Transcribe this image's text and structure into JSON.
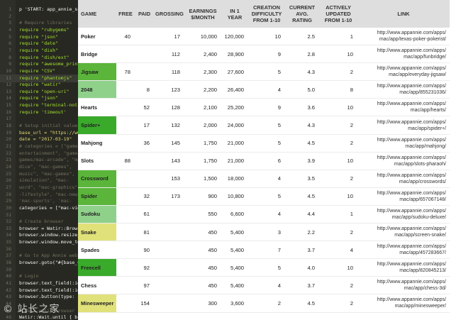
{
  "editor": {
    "watermark": "© 站长之家",
    "lines": [
      {
        "n": "1",
        "t": "p 'START: app_annie_scrape'",
        "c": "c-plain"
      },
      {
        "n": "2",
        "t": "",
        "c": "c-plain"
      },
      {
        "n": "3",
        "t": "# Require libraries",
        "c": "c-comment"
      },
      {
        "n": "4",
        "t": "require \"rubygems\"",
        "c": "c-green"
      },
      {
        "n": "5",
        "t": "require \"json\"",
        "c": "c-green"
      },
      {
        "n": "6",
        "t": "require \"date\"",
        "c": "c-green"
      },
      {
        "n": "7",
        "t": "require \"dish\"",
        "c": "c-green"
      },
      {
        "n": "8",
        "t": "require \"dish/ext\"",
        "c": "c-green"
      },
      {
        "n": "9",
        "t": "require \"awesome_print\"",
        "c": "c-green"
      },
      {
        "n": "10",
        "t": "require \"CSV\"",
        "c": "c-green"
      },
      {
        "n": "11",
        "t": "require \"phantomjs\"",
        "c": "c-green"
      },
      {
        "n": "12",
        "t": "require \"watir\"",
        "c": "c-green"
      },
      {
        "n": "13",
        "t": "require \"open-uri\"",
        "c": "c-green"
      },
      {
        "n": "14",
        "t": "require \"json\"",
        "c": "c-green"
      },
      {
        "n": "15",
        "t": "require \"terminal-notifier\"",
        "c": "c-green"
      },
      {
        "n": "16",
        "t": "require 'timeout'",
        "c": "c-green"
      },
      {
        "n": "17",
        "t": "",
        "c": "c-plain"
      },
      {
        "n": "18",
        "t": "# Setup initial values",
        "c": "c-comment"
      },
      {
        "n": "19",
        "t": "base_url = \"https://www.appannie.com\"",
        "c": "c-string"
      },
      {
        "n": "20",
        "t": "date = \"2017-03-19\"",
        "c": "c-string"
      },
      {
        "n": "21",
        "t": "# categories = [\"games\",",
        "c": "c-comment"
      },
      {
        "n": "22",
        "t": "  entertainment\", \"games\",",
        "c": "c-comment"
      },
      {
        "n": "23",
        "t": "  games/mac-arcade\", \"mac-",
        "c": "c-comment"
      },
      {
        "n": "24",
        "t": "  dice\", \"mac-games\",",
        "c": "c-comment"
      },
      {
        "n": "25",
        "t": "  music\", \"mac-games\",",
        "c": "c-comment"
      },
      {
        "n": "26",
        "t": "  simulation\", \"mac-",
        "c": "c-comment"
      },
      {
        "n": "27",
        "t": "  word\", \"mac-graphics\",",
        "c": "c-comment"
      },
      {
        "n": "28",
        "t": "  -lifestyle\", \"mac-news\",",
        "c": "c-comment"
      },
      {
        "n": "29",
        "t": "  'mac-sports', 'mac-",
        "c": "c-comment"
      },
      {
        "n": "30",
        "t": "categories = [\"mac-video\"]",
        "c": "c-plain"
      },
      {
        "n": "31",
        "t": "",
        "c": "c-plain"
      },
      {
        "n": "32",
        "t": "# Create browser",
        "c": "c-comment"
      },
      {
        "n": "33",
        "t": "browser = Watir::Browser.new",
        "c": "c-plain"
      },
      {
        "n": "34",
        "t": "browser.window.resize_to",
        "c": "c-plain"
      },
      {
        "n": "35",
        "t": "browser.window.move_to",
        "c": "c-plain"
      },
      {
        "n": "36",
        "t": "",
        "c": "c-plain"
      },
      {
        "n": "37",
        "t": "# Go to App Annie website",
        "c": "c-comment"
      },
      {
        "n": "38",
        "t": "browser.goto(\"#{base_url}\")",
        "c": "c-plain"
      },
      {
        "n": "39",
        "t": "",
        "c": "c-plain"
      },
      {
        "n": "40",
        "t": "# Login",
        "c": "c-comment"
      },
      {
        "n": "41",
        "t": "browser.text_field(:id",
        "c": "c-plain"
      },
      {
        "n": "42",
        "t": "browser.text_field(:id",
        "c": "c-plain"
      },
      {
        "n": "43",
        "t": "browser.button(type: 'submit')",
        "c": "c-plain"
      },
      {
        "n": "44",
        "t": "",
        "c": "c-plain"
      },
      {
        "n": "45",
        "t": "# Wait until browser loads",
        "c": "c-comment"
      },
      {
        "n": "46",
        "t": "Watir::Wait.until { brows",
        "c": "c-plain"
      }
    ]
  },
  "table": {
    "headers": [
      "GAME",
      "FREE",
      "PAID",
      "GROSSING",
      "EARNINGS $/MONTH",
      "IN 1 YEAR",
      "CREATION DIFFICULTY FROM 1-10",
      "CURRENT AVG. RATING",
      "ACTIVELY UPDATED FROM 1-10",
      "LINK"
    ],
    "rows": [
      {
        "game": "Poker",
        "free": "40",
        "paid": "",
        "grossing": "17",
        "earnings": "10,000",
        "year": "120,000",
        "difficulty": "10",
        "rating": "2.5",
        "updated": "1",
        "link1": "http://www.appannie.com/apps/",
        "link2": "mac/app/texas-poker-pokerist/",
        "color": "#ffffff"
      },
      {
        "game": "Bridge",
        "free": "",
        "paid": "",
        "grossing": "112",
        "earnings": "2,400",
        "year": "28,900",
        "difficulty": "9",
        "rating": "2.8",
        "updated": "10",
        "link1": "http://www.appannie.com/apps/",
        "link2": "mac/app/funbridge/",
        "color": "#ffffff"
      },
      {
        "game": "Jigsaw",
        "free": "78",
        "paid": "",
        "grossing": "118",
        "earnings": "2,300",
        "year": "27,600",
        "difficulty": "5",
        "rating": "4.3",
        "updated": "2",
        "link1": "http://www.appannie.com/apps/",
        "link2": "mac/app/everyday-jigsaw/",
        "color": "#5ab53a"
      },
      {
        "game": "2048",
        "free": "",
        "paid": "8",
        "grossing": "123",
        "earnings": "2,200",
        "year": "26,400",
        "difficulty": "4",
        "rating": "5.0",
        "updated": "8",
        "link1": "http://www.appannie.com/apps/",
        "link2": "mac/app/855231036/",
        "color": "#8fd18a"
      },
      {
        "game": "Hearts",
        "free": "",
        "paid": "52",
        "grossing": "128",
        "earnings": "2,100",
        "year": "25,200",
        "difficulty": "9",
        "rating": "3.6",
        "updated": "10",
        "link1": "http://www.appannie.com/apps/",
        "link2": "mac/app/hearts/",
        "color": "#ffffff"
      },
      {
        "game": "Spider+",
        "free": "",
        "paid": "17",
        "grossing": "132",
        "earnings": "2,000",
        "year": "24,000",
        "difficulty": "5",
        "rating": "4.3",
        "updated": "2",
        "link1": "http://www.appannie.com/apps/",
        "link2": "mac/app/spider+/",
        "color": "#3aaa2b"
      },
      {
        "game": "Mahjong",
        "free": "",
        "paid": "36",
        "grossing": "145",
        "earnings": "1,750",
        "year": "21,000",
        "difficulty": "5",
        "rating": "4.5",
        "updated": "2",
        "link1": "http://www.appannie.com/apps/",
        "link2": "mac/app/mahjong/",
        "color": "#ffffff"
      },
      {
        "game": "Slots",
        "free": "88",
        "paid": "",
        "grossing": "143",
        "earnings": "1,750",
        "year": "21,000",
        "difficulty": "6",
        "rating": "3.9",
        "updated": "10",
        "link1": "http://www.appannie.com/apps/",
        "link2": "mac/app/slots-pharaoh/",
        "color": "#ffffff"
      },
      {
        "game": "Crossword",
        "free": "",
        "paid": "",
        "grossing": "153",
        "earnings": "1,500",
        "year": "18,000",
        "difficulty": "4",
        "rating": "3.5",
        "updated": "2",
        "link1": "http://www.appannie.com/apps/",
        "link2": "mac/app/crosswords/",
        "color": "#5ab53a"
      },
      {
        "game": "Spider",
        "free": "",
        "paid": "32",
        "grossing": "173",
        "earnings": "900",
        "year": "10,800",
        "difficulty": "5",
        "rating": "4.5",
        "updated": "10",
        "link1": "http://www.appannie.com/apps/",
        "link2": "mac/app/657067148/",
        "color": "#5ab53a"
      },
      {
        "game": "Sudoku",
        "free": "",
        "paid": "61",
        "grossing": "",
        "earnings": "550",
        "year": "6,600",
        "difficulty": "4",
        "rating": "4.4",
        "updated": "1",
        "link1": "http://www.appannie.com/apps/",
        "link2": "mac/app/sudoku-deluxe/",
        "color": "#8fd18a"
      },
      {
        "game": "Snake",
        "free": "",
        "paid": "81",
        "grossing": "",
        "earnings": "450",
        "year": "5,400",
        "difficulty": "3",
        "rating": "2.2",
        "updated": "2",
        "link1": "http://www.appannie.com/apps/",
        "link2": "mac/app/screen-snake/",
        "color": "#e1e17a"
      },
      {
        "game": "Spades",
        "free": "",
        "paid": "90",
        "grossing": "",
        "earnings": "450",
        "year": "5,400",
        "difficulty": "7",
        "rating": "3.7",
        "updated": "4",
        "link1": "http://www.appannie.com/apps/",
        "link2": "mac/app/457283667/",
        "color": "#ffffff"
      },
      {
        "game": "Freecell",
        "free": "",
        "paid": "92",
        "grossing": "",
        "earnings": "450",
        "year": "5,400",
        "difficulty": "5",
        "rating": "4.0",
        "updated": "10",
        "link1": "http://www.appannie.com/apps/",
        "link2": "mac/app/820845213/",
        "color": "#3aaa2b"
      },
      {
        "game": "Chess",
        "free": "",
        "paid": "97",
        "grossing": "",
        "earnings": "450",
        "year": "5,400",
        "difficulty": "4",
        "rating": "3.7",
        "updated": "2",
        "link1": "http://www.appannie.com/apps/",
        "link2": "mac/app/chess-3d/",
        "color": "#ffffff"
      },
      {
        "game": "Minesweeper",
        "free": "",
        "paid": "154",
        "grossing": "",
        "earnings": "300",
        "year": "3,600",
        "difficulty": "2",
        "rating": "4.5",
        "updated": "2",
        "link1": "http://www.appannie.com/apps/",
        "link2": "mac/app/minesweeper/",
        "color": "#e1e17a"
      }
    ]
  }
}
